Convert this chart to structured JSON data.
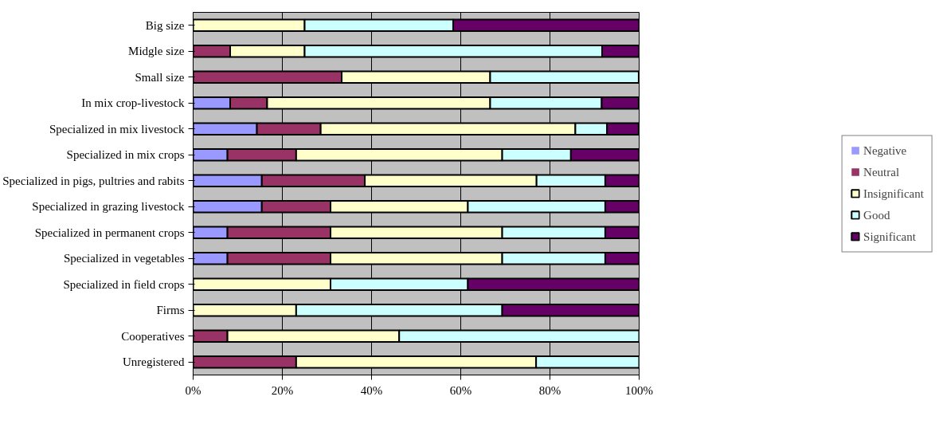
{
  "chart_data": {
    "type": "bar",
    "orientation": "horizontal",
    "stacked": true,
    "categories": [
      "Big size",
      "Midgle size",
      "Small size",
      "In mix crop-livestock",
      "Specialized in mix livestock",
      "Specialized in mix crops",
      "Specialized in pigs, pultries and rabits",
      "Specialized in grazing livestock",
      "Specialized in permanent crops",
      "Specialized in vegetables",
      "Specialized in field crops",
      "Firms",
      "Cooperatives",
      "Unregistered"
    ],
    "series": [
      {
        "name": "Negative",
        "color": "#9999ff",
        "values": [
          0,
          0,
          0,
          8.3,
          14.3,
          7.7,
          15.4,
          15.4,
          7.7,
          7.7,
          0,
          0,
          0,
          0
        ]
      },
      {
        "name": "Neutral",
        "color": "#993366",
        "values": [
          0,
          8.3,
          33.3,
          8.3,
          14.3,
          15.4,
          23.1,
          15.4,
          23.1,
          23.1,
          0,
          0,
          7.7,
          23.1
        ]
      },
      {
        "name": "Insignificant",
        "color": "#ffffcc",
        "values": [
          25,
          16.7,
          33.3,
          50,
          57.1,
          46.2,
          38.5,
          30.8,
          38.5,
          38.5,
          30.8,
          23.1,
          38.5,
          53.8
        ]
      },
      {
        "name": "Good",
        "color": "#ccffff",
        "values": [
          33.3,
          66.7,
          33.3,
          25,
          7.1,
          15.4,
          15.4,
          30.8,
          23.1,
          23.1,
          30.8,
          46.2,
          53.8,
          23.1
        ]
      },
      {
        "name": "Significant",
        "color": "#660066",
        "values": [
          41.7,
          8.3,
          0,
          8.3,
          7.1,
          15.4,
          7.7,
          7.7,
          7.7,
          7.7,
          38.5,
          30.8,
          0,
          0
        ]
      }
    ],
    "xlim": [
      0,
      100
    ],
    "xticks": [
      {
        "value": 0,
        "label": "0%"
      },
      {
        "value": 20,
        "label": "20%"
      },
      {
        "value": 40,
        "label": "40%"
      },
      {
        "value": 60,
        "label": "60%"
      },
      {
        "value": 80,
        "label": "80%"
      },
      {
        "value": 100,
        "label": "100%"
      }
    ],
    "grid": "x",
    "legend": "right"
  }
}
